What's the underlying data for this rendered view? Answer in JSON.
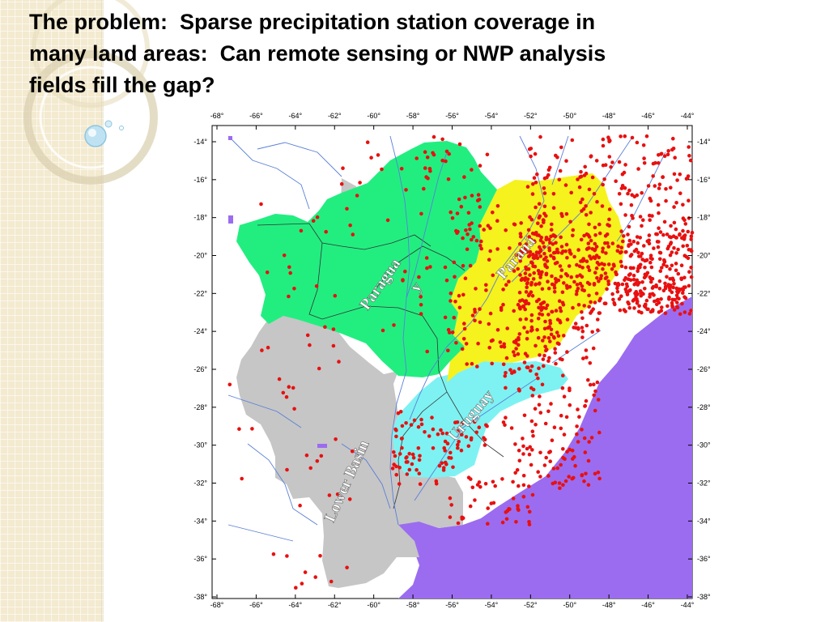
{
  "slide": {
    "title_lines": [
      "The problem:  Sparse precipitation station coverage in",
      "many land areas:  Can remote sensing or NWP analysis",
      "fields fill the gap?"
    ]
  },
  "map": {
    "longitude_ticks": [
      "-68°",
      "-66°",
      "-64°",
      "-62°",
      "-60°",
      "-58°",
      "-56°",
      "-54°",
      "-52°",
      "-50°",
      "-48°",
      "-46°",
      "-44°"
    ],
    "latitude_ticks": [
      "-14°",
      "-16°",
      "-18°",
      "-20°",
      "-22°",
      "-24°",
      "-26°",
      "-28°",
      "-30°",
      "-32°",
      "-34°",
      "-36°",
      "-38°"
    ],
    "basin_labels": {
      "paraguay_line1": "Paragua",
      "paraguay_line2": "y",
      "parana": "Paraná",
      "uruguay": "Uruguay",
      "lower_basin": "Lower Basin"
    },
    "colors": {
      "paraguay": "#22ee80",
      "parana": "#f5f21e",
      "uruguay": "#7ef2f2",
      "lower_basin": "#c6c6c6",
      "ocean": "#9b6cf0",
      "stations": "#e81010",
      "rivers": "#5a7fd8"
    }
  }
}
